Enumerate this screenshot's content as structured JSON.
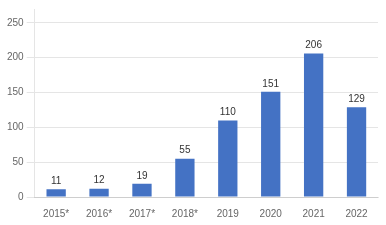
{
  "chart_data": {
    "type": "bar",
    "categories": [
      "2015*",
      "2016*",
      "2017*",
      "2018*",
      "2019",
      "2020",
      "2021",
      "2022"
    ],
    "values": [
      11,
      12,
      19,
      55,
      110,
      151,
      206,
      129
    ],
    "color": "#4472C4",
    "ylim": [
      0,
      270
    ],
    "yticks": [
      0,
      50,
      100,
      150,
      200,
      250
    ],
    "grid": true,
    "data_labels": true
  }
}
